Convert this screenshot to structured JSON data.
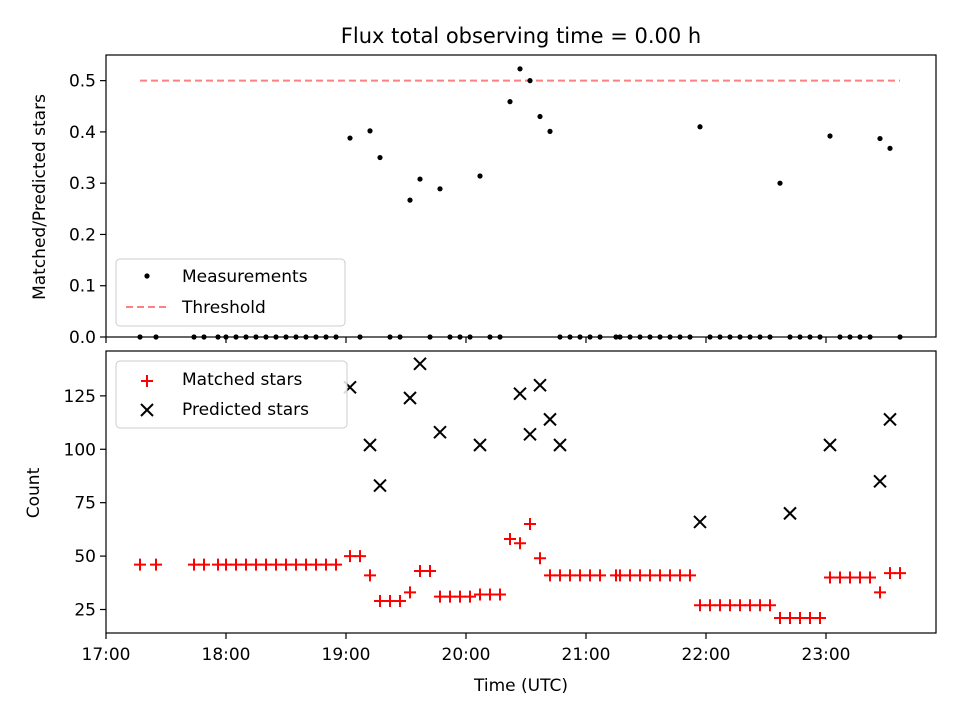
{
  "chart_data": [
    {
      "type": "scatter",
      "title": "Flux total observing time = 0.00 h",
      "ylabel": "Matched/Predicted stars",
      "xlabel": "",
      "xlim": [
        "17:00",
        "23:55"
      ],
      "ylim": [
        0,
        0.55
      ],
      "yticks": [
        0.0,
        0.1,
        0.2,
        0.3,
        0.4,
        0.5
      ],
      "ytick_labels": [
        "0.0",
        "0.1",
        "0.2",
        "0.3",
        "0.4",
        "0.5"
      ],
      "legend_position": "lower-left",
      "threshold": {
        "name": "Threshold",
        "value": 0.5,
        "x_start": "17:17",
        "x_end": "23:37",
        "color": "#ff8080",
        "style": "dashed"
      },
      "series": [
        {
          "name": "Measurements",
          "color": "#000000",
          "marker": "dot",
          "x": [
            "17:17",
            "17:25",
            "17:44",
            "17:49",
            "17:56",
            "18:00",
            "18:05",
            "18:10",
            "18:15",
            "18:20",
            "18:25",
            "18:30",
            "18:35",
            "18:40",
            "18:45",
            "18:50",
            "18:55",
            "19:02",
            "19:07",
            "19:12",
            "19:17",
            "19:22",
            "19:27",
            "19:32",
            "19:37",
            "19:42",
            "19:47",
            "19:52",
            "19:57",
            "20:02",
            "20:07",
            "20:12",
            "20:17",
            "20:22",
            "20:27",
            "20:32",
            "20:37",
            "20:42",
            "20:47",
            "20:52",
            "20:57",
            "21:02",
            "21:07",
            "21:15",
            "21:17",
            "21:22",
            "21:27",
            "21:32",
            "21:37",
            "21:42",
            "21:47",
            "21:52",
            "21:57",
            "22:02",
            "22:07",
            "22:12",
            "22:17",
            "22:22",
            "22:27",
            "22:32",
            "22:37",
            "22:42",
            "22:47",
            "22:52",
            "22:57",
            "23:02",
            "23:07",
            "23:12",
            "23:17",
            "23:22",
            "23:27",
            "23:32",
            "23:37"
          ],
          "y": [
            0,
            0,
            0,
            0,
            0,
            0,
            0,
            0,
            0,
            0,
            0,
            0,
            0,
            0,
            0,
            0,
            0,
            0.388,
            0,
            0.402,
            0.35,
            0,
            0,
            0.267,
            0.308,
            0,
            0.289,
            0,
            0,
            0,
            0.314,
            0,
            0,
            0.459,
            0.523,
            0.5,
            0.43,
            0.401,
            0,
            0,
            0,
            0,
            0,
            0,
            0,
            0,
            0,
            0,
            0,
            0,
            0,
            0,
            0.41,
            0,
            0,
            0,
            0,
            0,
            0,
            0,
            0.3,
            0,
            0,
            0,
            0,
            0.392,
            0,
            0,
            0,
            0,
            0.387,
            0.368,
            0
          ]
        }
      ]
    },
    {
      "type": "scatter",
      "title": "",
      "ylabel": "Count",
      "xlabel": "Time (UTC)",
      "xlim": [
        "17:00",
        "23:55"
      ],
      "ylim": [
        14,
        146
      ],
      "yticks": [
        25,
        50,
        75,
        100,
        125
      ],
      "ytick_labels": [
        "25",
        "50",
        "75",
        "100",
        "125"
      ],
      "xticks": [
        "17:00",
        "18:00",
        "19:00",
        "20:00",
        "21:00",
        "22:00",
        "23:00"
      ],
      "legend_position": "upper-left",
      "series": [
        {
          "name": "Matched stars",
          "color": "#ff0000",
          "marker": "plus",
          "x": [
            "17:17",
            "17:25",
            "17:44",
            "17:49",
            "17:56",
            "18:00",
            "18:05",
            "18:10",
            "18:15",
            "18:20",
            "18:25",
            "18:30",
            "18:35",
            "18:40",
            "18:45",
            "18:50",
            "18:55",
            "19:02",
            "19:07",
            "19:12",
            "19:17",
            "19:22",
            "19:27",
            "19:32",
            "19:37",
            "19:42",
            "19:47",
            "19:52",
            "19:57",
            "20:02",
            "20:07",
            "20:12",
            "20:17",
            "20:22",
            "20:27",
            "20:32",
            "20:37",
            "20:42",
            "20:47",
            "20:52",
            "20:57",
            "21:02",
            "21:07",
            "21:15",
            "21:17",
            "21:22",
            "21:27",
            "21:32",
            "21:37",
            "21:42",
            "21:47",
            "21:52",
            "21:57",
            "22:02",
            "22:07",
            "22:12",
            "22:17",
            "22:22",
            "22:27",
            "22:32",
            "22:37",
            "22:42",
            "22:47",
            "22:52",
            "22:57",
            "23:02",
            "23:07",
            "23:12",
            "23:17",
            "23:22",
            "23:27",
            "23:32",
            "23:37"
          ],
          "y": [
            46,
            46,
            46,
            46,
            46,
            46,
            46,
            46,
            46,
            46,
            46,
            46,
            46,
            46,
            46,
            46,
            46,
            50,
            50,
            41,
            29,
            29,
            29,
            33,
            43,
            43,
            31,
            31,
            31,
            31,
            32,
            32,
            32,
            58,
            56,
            65,
            49,
            41,
            41,
            41,
            41,
            41,
            41,
            41,
            41,
            41,
            41,
            41,
            41,
            41,
            41,
            41,
            27,
            27,
            27,
            27,
            27,
            27,
            27,
            27,
            21,
            21,
            21,
            21,
            21,
            40,
            40,
            40,
            40,
            40,
            33,
            42,
            42
          ]
        },
        {
          "name": "Predicted stars",
          "color": "#000000",
          "marker": "x",
          "x": [
            "19:02",
            "19:12",
            "19:17",
            "19:32",
            "19:37",
            "19:47",
            "20:07",
            "20:27",
            "20:32",
            "20:37",
            "20:42",
            "20:47",
            "21:57",
            "22:42",
            "23:02",
            "23:27",
            "23:32"
          ],
          "y": [
            129,
            102,
            83,
            124,
            140,
            108,
            102,
            126,
            107,
            130,
            114,
            102,
            66,
            70,
            102,
            85,
            114
          ]
        }
      ]
    }
  ]
}
